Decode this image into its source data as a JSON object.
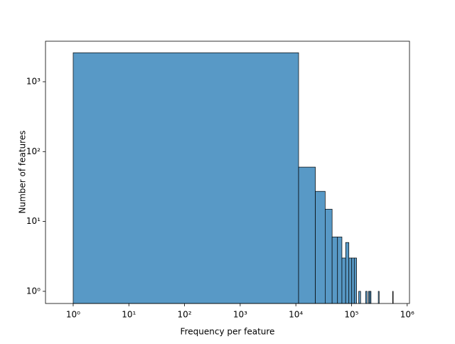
{
  "chart_data": {
    "type": "histogram",
    "xlabel": "Frequency per feature",
    "ylabel": "Number of features",
    "bins": [
      1,
      11201,
      22401,
      33601,
      44801,
      56001,
      67201,
      78401,
      89601,
      100801,
      112001,
      123201,
      134401,
      145601,
      156801,
      168001,
      179201,
      190401,
      201601,
      212801,
      224001,
      235201,
      246401,
      257601,
      268801,
      280001,
      291201,
      302401,
      313601,
      324801,
      336001,
      347201,
      358401,
      369601,
      380801,
      392001,
      403201,
      414401,
      425601,
      436801,
      448001,
      459201,
      470401,
      481601,
      492801,
      504001,
      515201,
      526401,
      537601,
      548801,
      560001
    ],
    "counts": [
      2600,
      60,
      27,
      15,
      6,
      6,
      3,
      5,
      3,
      3,
      3,
      0,
      1,
      0,
      0,
      0,
      1,
      0,
      1,
      1,
      0,
      0,
      0,
      0,
      0,
      0,
      0,
      1,
      0,
      0,
      0,
      0,
      0,
      0,
      0,
      0,
      0,
      0,
      0,
      0,
      0,
      0,
      0,
      0,
      0,
      0,
      0,
      0,
      0,
      1
    ],
    "color": "#5899c6",
    "xscale": "log",
    "yscale": "log",
    "xlim": [
      0.318,
      1100000
    ],
    "ylim": [
      0.67,
      3800
    ],
    "xticks": [
      {
        "value": 1,
        "label": "10⁰"
      },
      {
        "value": 10,
        "label": "10¹"
      },
      {
        "value": 100,
        "label": "10²"
      },
      {
        "value": 1000,
        "label": "10³"
      },
      {
        "value": 10000,
        "label": "10⁴"
      },
      {
        "value": 100000,
        "label": "10⁵"
      },
      {
        "value": 1000000,
        "label": "10⁶"
      }
    ],
    "yticks": [
      {
        "value": 1,
        "label": "10⁰"
      },
      {
        "value": 10,
        "label": "10¹"
      },
      {
        "value": 100,
        "label": "10²"
      },
      {
        "value": 1000,
        "label": "10³"
      }
    ]
  }
}
